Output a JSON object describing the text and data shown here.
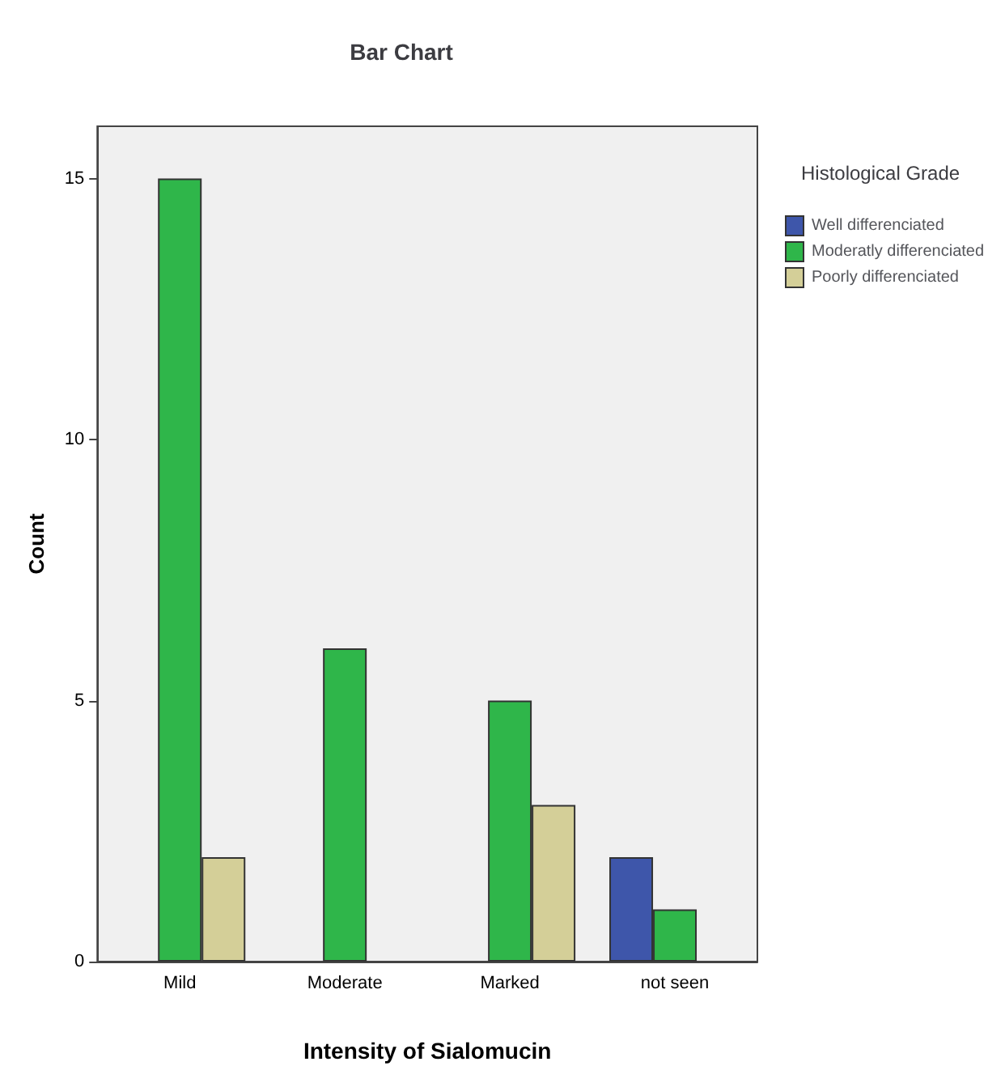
{
  "chart_data": {
    "type": "bar",
    "title": "Bar Chart",
    "xlabel": "Intensity of Sialomucin",
    "ylabel": "Count",
    "legend_title": "Histological Grade",
    "categories": [
      "Mild",
      "Moderate",
      "Marked",
      "not seen"
    ],
    "series": [
      {
        "name": "Well differenciated",
        "color": "#3e56aa",
        "values": [
          null,
          null,
          null,
          2
        ]
      },
      {
        "name": "Moderatly differenciated",
        "color": "#2fb64a",
        "values": [
          15,
          6,
          5,
          1
        ]
      },
      {
        "name": "Poorly differenciated",
        "color": "#d4cf98",
        "values": [
          2,
          null,
          3,
          null
        ]
      }
    ],
    "ylim": [
      0,
      16
    ],
    "yticks": [
      0,
      5,
      10,
      15
    ],
    "grid": false,
    "legend": "top right"
  }
}
